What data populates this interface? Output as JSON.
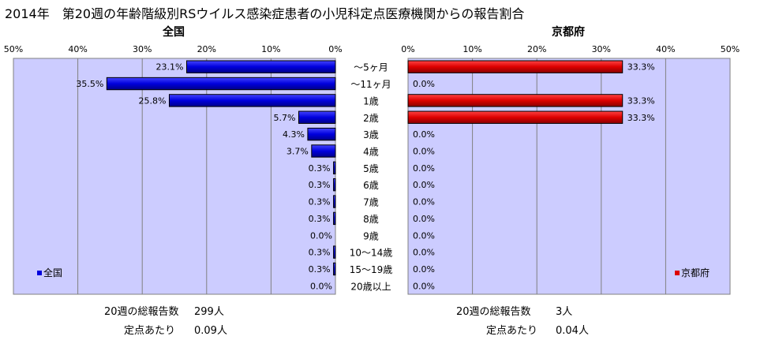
{
  "title": "2014年　第20週の年齢階級別RSウイルス感染症患者の小児科定点医療機関からの報告割合",
  "chart_data": {
    "type": "bar",
    "orientation": "horizontal",
    "categories": [
      "～5ヶ月",
      "～11ヶ月",
      "1歳",
      "2歳",
      "3歳",
      "4歳",
      "5歳",
      "6歳",
      "7歳",
      "8歳",
      "9歳",
      "10～14歳",
      "15～19歳",
      "20歳以上"
    ],
    "xlim": [
      0,
      50
    ],
    "ticks": [
      "0%",
      "10%",
      "20%",
      "30%",
      "40%",
      "50%"
    ],
    "grid": true,
    "panels": [
      {
        "title": "全国",
        "legend": "全国",
        "legend_position": "bottom-left",
        "color": "#0000dd",
        "values": [
          23.1,
          35.5,
          25.8,
          5.7,
          4.3,
          3.7,
          0.3,
          0.3,
          0.3,
          0.3,
          0.0,
          0.3,
          0.3,
          0.0
        ],
        "labels": [
          "23.1%",
          "35.5%",
          "25.8%",
          "5.7%",
          "4.3%",
          "3.7%",
          "0.3%",
          "0.3%",
          "0.3%",
          "0.3%",
          "0.0%",
          "0.3%",
          "0.3%",
          "0.0%"
        ]
      },
      {
        "title": "京都府",
        "legend": "京都府",
        "legend_position": "bottom-right",
        "color": "#dd0000",
        "values": [
          33.3,
          0.0,
          33.3,
          33.3,
          0.0,
          0.0,
          0.0,
          0.0,
          0.0,
          0.0,
          0.0,
          0.0,
          0.0,
          0.0
        ],
        "labels": [
          "33.3%",
          "0.0%",
          "33.3%",
          "33.3%",
          "0.0%",
          "0.0%",
          "0.0%",
          "0.0%",
          "0.0%",
          "0.0%",
          "0.0%",
          "0.0%",
          "0.0%",
          "0.0%"
        ]
      }
    ]
  },
  "footer": {
    "national_total_label": "20週の総報告数",
    "national_total_value": "299人",
    "national_per_label": "定点あたり",
    "national_per_value": "0.09人",
    "kyoto_total_label": "20週の総報告数",
    "kyoto_total_value": "3人",
    "kyoto_per_label": "定点あたり",
    "kyoto_per_value": "0.04人"
  }
}
